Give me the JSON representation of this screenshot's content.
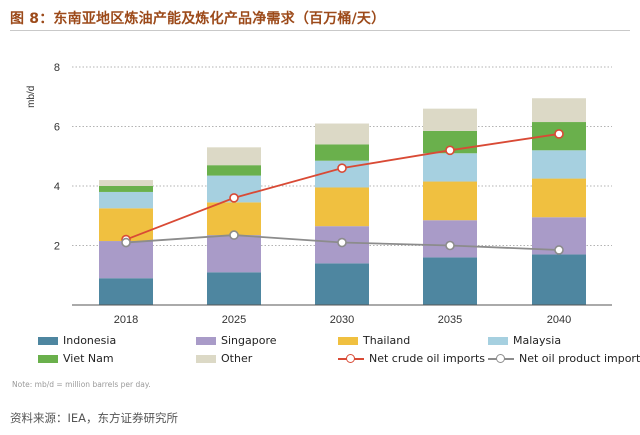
{
  "page": {
    "title": "图 8：东南亚地区炼油产能及炼化产品净需求（百万桶/天）",
    "note": "Note: mb/d = million barrels per day.",
    "source": "资料来源：IEA，东方证券研究所"
  },
  "chart_data": {
    "type": "bar",
    "stacked": true,
    "ylabel": "mb/d",
    "ylim": [
      0,
      8
    ],
    "yticks": [
      2,
      4,
      6,
      8
    ],
    "grid": "dotted horizontal",
    "legend_position": "bottom",
    "categories": [
      "2018",
      "2025",
      "2030",
      "2035",
      "2040"
    ],
    "series": [
      {
        "name": "Indonesia",
        "color": "#4e86a0",
        "values": [
          0.9,
          1.1,
          1.4,
          1.6,
          1.7
        ]
      },
      {
        "name": "Singapore",
        "color": "#a99bc8",
        "values": [
          1.25,
          1.25,
          1.25,
          1.25,
          1.25
        ]
      },
      {
        "name": "Thailand",
        "color": "#f0c040",
        "values": [
          1.1,
          1.1,
          1.3,
          1.3,
          1.3
        ]
      },
      {
        "name": "Malaysia",
        "color": "#a6d0e0",
        "values": [
          0.55,
          0.9,
          0.9,
          0.95,
          0.95
        ]
      },
      {
        "name": "Viet Nam",
        "color": "#6ab04c",
        "values": [
          0.2,
          0.35,
          0.55,
          0.75,
          0.95
        ]
      },
      {
        "name": "Other",
        "color": "#dcd9c6",
        "values": [
          0.2,
          0.6,
          0.7,
          0.75,
          0.8
        ]
      }
    ],
    "lines": [
      {
        "name": "Net crude oil imports",
        "color": "#d94a35",
        "values": [
          2.2,
          3.6,
          4.6,
          5.2,
          5.75
        ]
      },
      {
        "name": "Net oil product imports",
        "color": "#8c8c8c",
        "values": [
          2.1,
          2.35,
          2.1,
          2.0,
          1.85
        ]
      }
    ]
  }
}
